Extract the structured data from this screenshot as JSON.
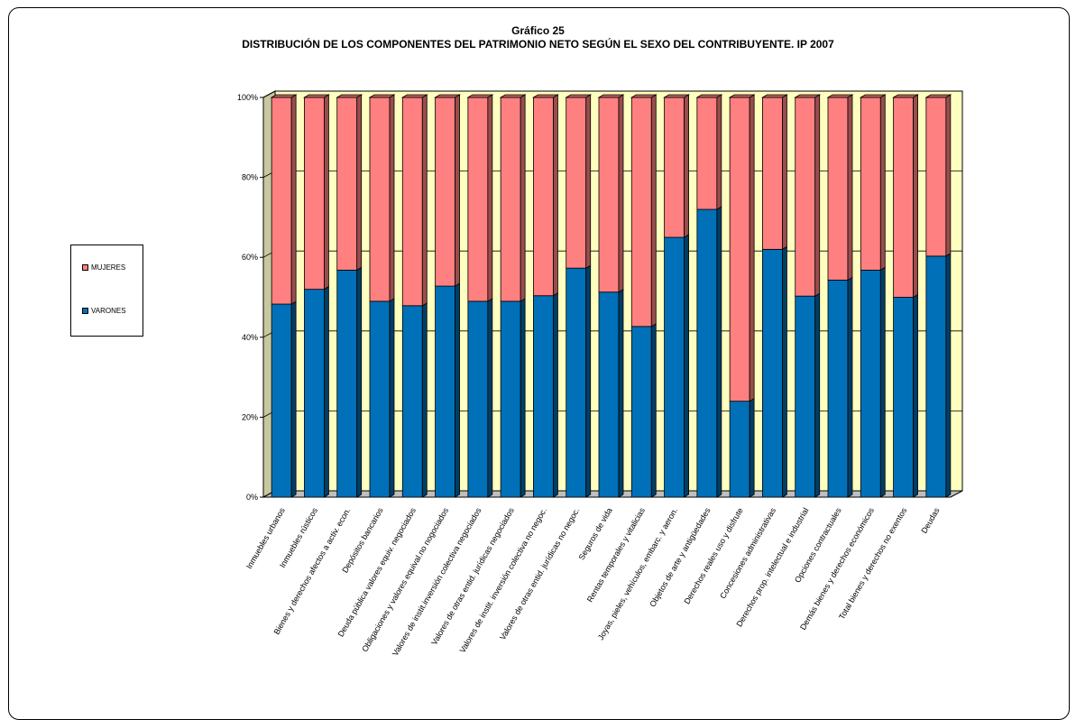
{
  "chart_data": {
    "type": "bar",
    "stacked": "percent",
    "title": "Gráfico 25",
    "subtitle": "DISTRIBUCIÓN DE LOS COMPONENTES DEL PATRIMONIO NETO SEGÚN EL SEXO DEL CONTRIBUYENTE. IP 2007",
    "categories": [
      "Inmuebles urbanos",
      "Inmuebles rústicos",
      "Bienes y derechos afectos a activ. econ.",
      "Depósitos bancarios",
      "Deuda pública valores equiv. negociados",
      "Obligaciones y valores equival.no nogociados",
      "Valores de instit.inversión colectiva negociados",
      "Valores de otras entid. jurídicas negociados",
      "Valores de instit. inversión colectiva no negoc.",
      "Valores de otras entid. jurídicas no negoc.",
      "Seguros de vida",
      "Rentas temporales y vitalicias",
      "Joyas, pieles, vehículos, embarc. y aeron.",
      "Objetos de arte y antigüedades",
      "Derechos reales uso y disfrute",
      "Concesiones administrativas",
      "Derechos prop. intelectual e industrial",
      "Opciones contractuales",
      "Demás bienes y derechos económicos",
      "Total bienes y derechos no exentos",
      "Deudas"
    ],
    "series": [
      {
        "name": "VARONES",
        "color": "#0070B8",
        "values": [
          48.3,
          52.0,
          56.8,
          49.0,
          47.9,
          52.8,
          49.0,
          49.0,
          50.4,
          57.3,
          51.3,
          42.7,
          65.0,
          72.0,
          24.0,
          62.0,
          50.3,
          54.3,
          56.8,
          50.0,
          60.3
        ]
      },
      {
        "name": "MUJERES",
        "color": "#FF8080",
        "values": [
          51.7,
          48.0,
          43.2,
          51.0,
          52.1,
          47.2,
          51.0,
          51.0,
          49.6,
          42.7,
          48.7,
          57.3,
          35.0,
          28.0,
          76.0,
          38.0,
          49.7,
          45.7,
          43.2,
          50.0,
          39.7
        ]
      }
    ],
    "yticks": [
      "0%",
      "20%",
      "40%",
      "60%",
      "80%",
      "100%"
    ],
    "ylim": [
      0,
      100
    ],
    "legend": {
      "placement": "left",
      "items": [
        "MUJERES",
        "VARONES"
      ]
    },
    "grid": true,
    "wall_color": "#FFFFC0"
  }
}
